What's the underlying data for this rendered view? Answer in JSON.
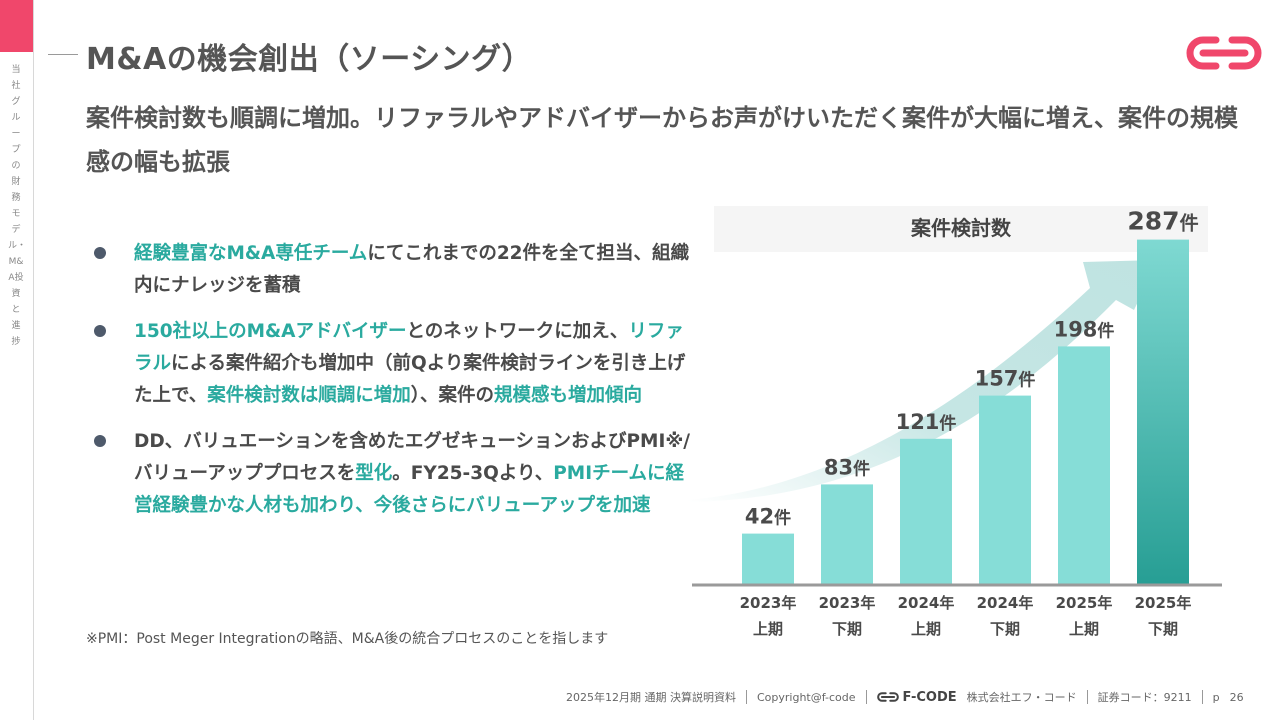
{
  "sidebar": {
    "text": "当社グループの財務モデル・M&A投資と進捗"
  },
  "title": "M&Aの機会創出（ソーシング）",
  "lead": "案件検討数も順調に増加。リファラルやアドバイザーからお声がけいただく案件が大幅に増え、案件の規模感の幅も拡張",
  "bullets": [
    {
      "segments": [
        {
          "text": "経験豊富なM&A専任チーム",
          "hl": true
        },
        {
          "text": "にてこれまでの22件を全て担当、組織内にナレッジを蓄積",
          "hl": false
        }
      ]
    },
    {
      "segments": [
        {
          "text": "150社以上のM&Aアドバイザー",
          "hl": true
        },
        {
          "text": "とのネットワークに加え、",
          "hl": false
        },
        {
          "text": "リファラル",
          "hl": true
        },
        {
          "text": "による案件紹介も増加中（前Qより案件検討ラインを引き上げた上で、",
          "hl": false
        },
        {
          "text": "案件検討数は順調に増加",
          "hl": true
        },
        {
          "text": "）、案件の",
          "hl": false
        },
        {
          "text": "規模感も増加傾向",
          "hl": true
        }
      ]
    },
    {
      "segments": [
        {
          "text": "DD、バリュエーションを含めたエグゼキューションおよびPMI※/バリューアッププロセスを",
          "hl": false
        },
        {
          "text": "型化",
          "hl": true
        },
        {
          "text": "。FY25-3Qより、",
          "hl": false
        },
        {
          "text": "PMIチームに経営経験豊かな人材も加わり、今後さらにバリューアップを加速",
          "hl": true
        }
      ]
    }
  ],
  "footnote": "※PMI：Post Meger Integrationの略語、M&A後の統合プロセスのことを指します",
  "chart_data": {
    "type": "bar",
    "title": "案件検討数",
    "categories": [
      [
        "2023年",
        "上期"
      ],
      [
        "2023年",
        "下期"
      ],
      [
        "2024年",
        "上期"
      ],
      [
        "2024年",
        "下期"
      ],
      [
        "2025年",
        "上期"
      ],
      [
        "2025年",
        "下期"
      ]
    ],
    "values": [
      42,
      83,
      121,
      157,
      198,
      287
    ],
    "unit": "件",
    "ylim": [
      0,
      300
    ],
    "grid": false,
    "colors": {
      "bar": "#86ddd7",
      "last_top": "#7fd9d2",
      "last_bottom": "#279e94",
      "arrow": "#bfe3e1",
      "axis": "#9a9a9a"
    }
  },
  "footer": {
    "report": "2025年12月期 通期 決算説明資料",
    "copyright": "Copyright@f-code",
    "brand": "F-CODE",
    "company": "株式会社エフ・コード",
    "code": "証券コード：9211",
    "page_prefix": "p",
    "page": "26"
  },
  "colors": {
    "accent": "#f0476b",
    "highlight": "#2aaa9f",
    "bullet": "#4e5a6b"
  }
}
